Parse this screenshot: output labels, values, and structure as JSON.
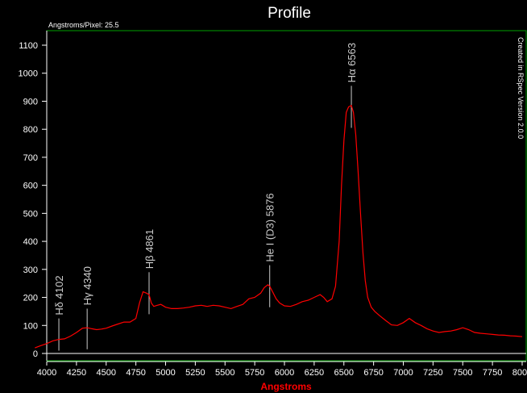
{
  "chart_data": {
    "type": "line",
    "title": "Profile",
    "xlabel": "Angstroms",
    "ylabel": "",
    "top_note": "Angstroms/Pixel: 25.5",
    "side_note": "Created in RSpec Version 2.0.0",
    "xlim": [
      3900,
      8000
    ],
    "ylim": [
      0,
      1150
    ],
    "x_ticks": [
      4000,
      4250,
      4500,
      4750,
      5000,
      5250,
      5500,
      5750,
      6000,
      6250,
      6500,
      6750,
      7000,
      7250,
      7500,
      7750,
      8000
    ],
    "y_ticks": [
      0,
      100,
      200,
      300,
      400,
      500,
      600,
      700,
      800,
      900,
      1000,
      1100
    ],
    "series": [
      {
        "color": "#ff0000",
        "x": [
          3900,
          3950,
          4000,
          4050,
          4102,
          4150,
          4200,
          4250,
          4300,
          4340,
          4380,
          4420,
          4460,
          4500,
          4550,
          4600,
          4650,
          4700,
          4750,
          4780,
          4810,
          4840,
          4861,
          4880,
          4900,
          4930,
          4960,
          5000,
          5050,
          5100,
          5150,
          5200,
          5250,
          5300,
          5350,
          5400,
          5450,
          5500,
          5550,
          5600,
          5650,
          5700,
          5750,
          5800,
          5830,
          5860,
          5876,
          5900,
          5930,
          5960,
          6000,
          6050,
          6100,
          6150,
          6200,
          6250,
          6300,
          6330,
          6360,
          6400,
          6430,
          6460,
          6480,
          6500,
          6520,
          6540,
          6563,
          6580,
          6600,
          6620,
          6640,
          6660,
          6680,
          6700,
          6730,
          6760,
          6800,
          6850,
          6900,
          6950,
          7000,
          7050,
          7100,
          7150,
          7200,
          7250,
          7300,
          7350,
          7400,
          7450,
          7500,
          7550,
          7600,
          7650,
          7700,
          7750,
          7800,
          7850,
          7900,
          7950,
          8000
        ],
        "y": [
          20,
          28,
          35,
          45,
          50,
          52,
          62,
          75,
          90,
          92,
          88,
          85,
          87,
          90,
          98,
          105,
          112,
          112,
          125,
          180,
          220,
          215,
          210,
          180,
          168,
          172,
          175,
          165,
          160,
          160,
          162,
          165,
          170,
          172,
          168,
          172,
          170,
          165,
          160,
          168,
          175,
          195,
          200,
          215,
          235,
          245,
          240,
          220,
          195,
          180,
          170,
          168,
          175,
          185,
          190,
          200,
          210,
          200,
          185,
          195,
          240,
          400,
          600,
          760,
          860,
          880,
          885,
          860,
          780,
          650,
          500,
          360,
          260,
          200,
          165,
          150,
          135,
          118,
          102,
          100,
          110,
          125,
          110,
          100,
          88,
          80,
          75,
          78,
          80,
          85,
          92,
          85,
          75,
          72,
          70,
          68,
          66,
          65,
          63,
          62,
          60
        ]
      }
    ],
    "line_labels": [
      {
        "text": "Hδ 4102",
        "x": 4102,
        "y_bottom": 10,
        "y_top": 125
      },
      {
        "text": "Hγ 4340",
        "x": 4340,
        "y_bottom": 15,
        "y_top": 160
      },
      {
        "text": "Hβ 4861",
        "x": 4861,
        "y_bottom": 140,
        "y_top": 290
      },
      {
        "text": "He I (D3) 5876",
        "x": 5876,
        "y_bottom": 165,
        "y_top": 315
      },
      {
        "text": "Hα 6563",
        "x": 6563,
        "y_bottom": 805,
        "y_top": 955
      }
    ],
    "grid": false,
    "colors": {
      "frame": "#00a000",
      "axis": "#ffffff",
      "line": "#ff0000",
      "xlabel": "#ff0000",
      "markers": "#cccccc"
    }
  }
}
